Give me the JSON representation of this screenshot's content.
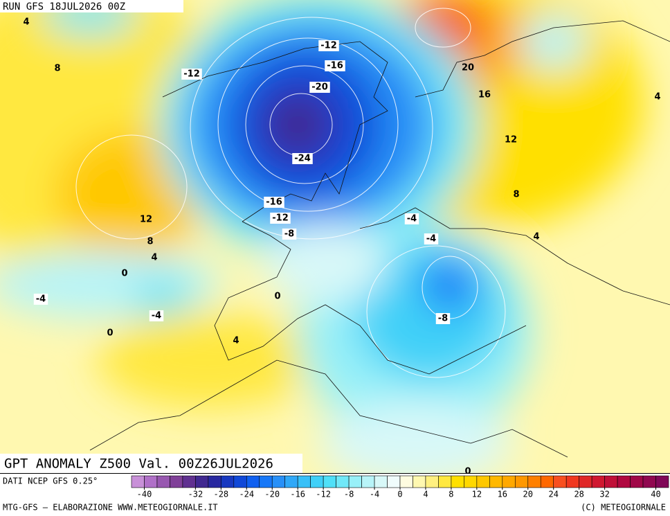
{
  "header": {
    "run": "RUN GFS 18JUL2026 00Z"
  },
  "map": {
    "title": "GPT ANOMALY Z500 Val. 00Z26JUL2026",
    "contour_labels": [
      -12,
      -16,
      -12,
      -20,
      -24,
      -16,
      -12,
      -8,
      20,
      16,
      12,
      8,
      4,
      4,
      4,
      8,
      12,
      8,
      4,
      0,
      -4,
      -4,
      0,
      0,
      4,
      -4,
      -4,
      -8,
      0
    ]
  },
  "colorbar": {
    "source": "DATI NCEP GFS 0.25°",
    "lim": [
      -42,
      42
    ],
    "colors": [
      "#c890d8",
      "#b070c8",
      "#9858b0",
      "#804098",
      "#603090",
      "#402890",
      "#2828a0",
      "#1838c0",
      "#1048d8",
      "#1060f0",
      "#1878f8",
      "#2890f8",
      "#30a8f8",
      "#38c0f8",
      "#40d0f8",
      "#50e0f8",
      "#70e8f8",
      "#98f0f8",
      "#b8f4f8",
      "#d8f8f8",
      "#f0fcfc",
      "#fffce0",
      "#fff8b0",
      "#fff080",
      "#ffe840",
      "#ffe000",
      "#ffd800",
      "#ffc800",
      "#ffb800",
      "#ffa800",
      "#ff9800",
      "#ff8000",
      "#ff6800",
      "#f85020",
      "#f03820",
      "#e02828",
      "#d01830",
      "#c01038",
      "#b00840",
      "#a00848",
      "#900850",
      "#800858"
    ],
    "ticks": [
      -40,
      -32,
      -28,
      -24,
      -20,
      -16,
      -12,
      -8,
      -4,
      0,
      4,
      8,
      12,
      16,
      20,
      24,
      28,
      32,
      40
    ]
  },
  "footer": {
    "left": "MTG-GFS — ELABORAZIONE WWW.METEOGIORNALE.IT",
    "right": "(C) METEOGIORNALE"
  }
}
